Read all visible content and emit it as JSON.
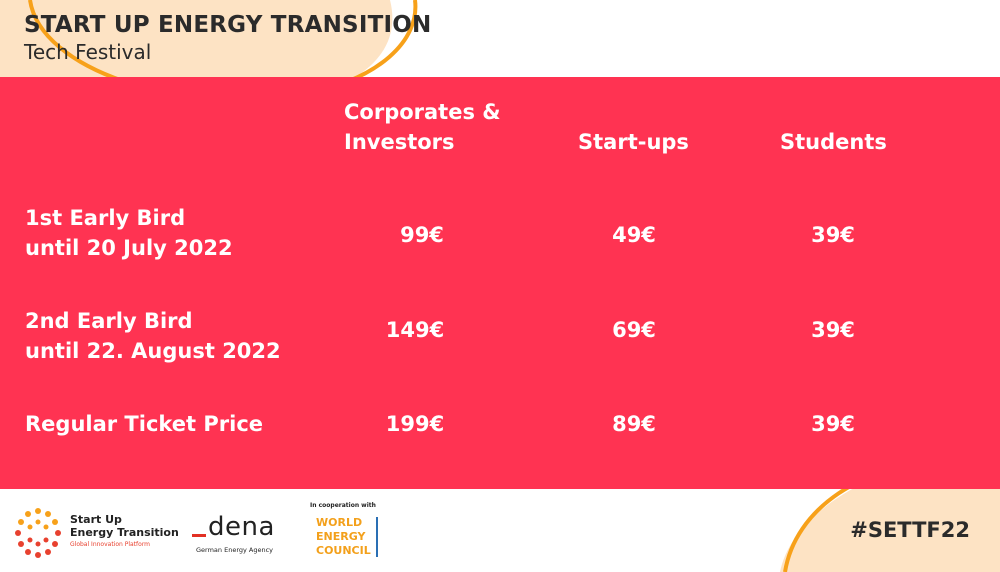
{
  "header": {
    "title": "START UP ENERGY TRANSITION",
    "subtitle": "Tech Festival"
  },
  "columns": [
    "Corporates &",
    "Investors",
    "Start-ups",
    "Students"
  ],
  "rows": [
    {
      "label_line1": "1st Early Bird",
      "label_line2": "until 20 July 2022",
      "prices": [
        "99€",
        "49€",
        "39€"
      ]
    },
    {
      "label_line1": "2nd Early Bird",
      "label_line2": "until 22. August 2022",
      "prices": [
        "149€",
        "69€",
        "39€"
      ]
    },
    {
      "label_line1": "Regular Ticket Price",
      "prices": [
        "199€",
        "89€",
        "39€"
      ]
    }
  ],
  "footer": {
    "set_logo": {
      "line1": "Start Up",
      "line2": "Energy Transition",
      "line3": "Global Innovation Platform"
    },
    "dena_logo": {
      "word": "dena",
      "sub": "German Energy Agency"
    },
    "wec_logo": {
      "coop": "In cooperation with",
      "line1": "WORLD",
      "line2": "ENERGY",
      "line3": "COUNCIL"
    },
    "hashtag": "#SETTF22"
  },
  "colors": {
    "band": "#ff3352",
    "peach": "#fde3c4",
    "orange_arc": "#f7a11a",
    "dena_red": "#e23024",
    "wec_orange": "#f3a01b",
    "wec_blue": "#2a6fb4"
  }
}
